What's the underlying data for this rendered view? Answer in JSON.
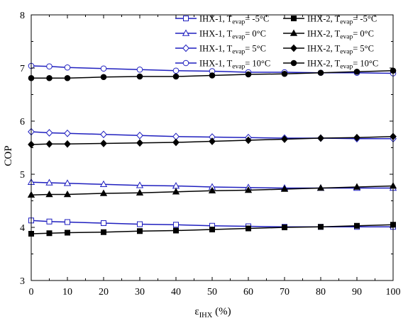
{
  "chart_data": {
    "type": "line",
    "title": "",
    "xlabel": {
      "main": "ε",
      "sub": "IHX",
      "suffix": " (%)"
    },
    "ylabel": "COP",
    "xlim": [
      0,
      100
    ],
    "ylim": [
      3,
      8
    ],
    "x_ticks": [
      0,
      10,
      20,
      30,
      40,
      50,
      60,
      70,
      80,
      90,
      100
    ],
    "y_ticks": [
      3,
      4,
      5,
      6,
      7,
      8
    ],
    "x": [
      0,
      5,
      10,
      20,
      30,
      40,
      50,
      60,
      70,
      80,
      90,
      100
    ],
    "grid": false,
    "legend_position": "top-right",
    "series": [
      {
        "name": "IHX-1, Tevap= -5°C",
        "label": {
          "pre": "IHX-1, T",
          "sub": "evap",
          "post": "= -5°C"
        },
        "marker": "square",
        "fill": "open",
        "color": "#1f1fbf",
        "values": [
          4.13,
          4.11,
          4.1,
          4.08,
          4.06,
          4.05,
          4.03,
          4.02,
          4.01,
          4.01,
          4.01,
          4.01
        ]
      },
      {
        "name": "IHX-2, Tevap= -5°C",
        "label": {
          "pre": "IHX-2, T",
          "sub": "evap",
          "post": "= -5°C"
        },
        "marker": "square",
        "fill": "filled",
        "color": "#000000",
        "values": [
          3.88,
          3.89,
          3.9,
          3.91,
          3.93,
          3.94,
          3.96,
          3.98,
          4.0,
          4.01,
          4.03,
          4.05
        ]
      },
      {
        "name": "IHX-1, Tevap= 0°C",
        "label": {
          "pre": "IHX-1, T",
          "sub": "evap",
          "post": "= 0°C"
        },
        "marker": "triangle",
        "fill": "open",
        "color": "#1f1fbf",
        "values": [
          4.85,
          4.84,
          4.83,
          4.81,
          4.79,
          4.78,
          4.76,
          4.75,
          4.74,
          4.74,
          4.74,
          4.74
        ]
      },
      {
        "name": "IHX-2, Tevap= 0°C",
        "label": {
          "pre": "IHX-2, T",
          "sub": "evap",
          "post": "= 0°C"
        },
        "marker": "triangle",
        "fill": "filled",
        "color": "#000000",
        "values": [
          4.61,
          4.62,
          4.62,
          4.64,
          4.65,
          4.67,
          4.69,
          4.7,
          4.72,
          4.74,
          4.76,
          4.78
        ]
      },
      {
        "name": "IHX-1, Tevap= 5°C",
        "label": {
          "pre": "IHX-1, T",
          "sub": "evap",
          "post": "= 5°C"
        },
        "marker": "diamond",
        "fill": "open",
        "color": "#1f1fbf",
        "values": [
          5.8,
          5.78,
          5.77,
          5.75,
          5.73,
          5.71,
          5.7,
          5.69,
          5.68,
          5.68,
          5.67,
          5.67
        ]
      },
      {
        "name": "IHX-2, Tevap= 5°C",
        "label": {
          "pre": "IHX-2, T",
          "sub": "evap",
          "post": "= 5°C"
        },
        "marker": "diamond",
        "fill": "filled",
        "color": "#000000",
        "values": [
          5.56,
          5.57,
          5.57,
          5.58,
          5.59,
          5.6,
          5.62,
          5.64,
          5.66,
          5.68,
          5.69,
          5.71
        ]
      },
      {
        "name": "IHX-1, Tevap= 10°C",
        "label": {
          "pre": "IHX-1, T",
          "sub": "evap",
          "post": "= 10°C"
        },
        "marker": "circle",
        "fill": "open",
        "color": "#1f1fbf",
        "values": [
          7.04,
          7.03,
          7.01,
          6.99,
          6.97,
          6.95,
          6.94,
          6.92,
          6.92,
          6.91,
          6.91,
          6.9
        ]
      },
      {
        "name": "IHX-2, Tevap= 10°C",
        "label": {
          "pre": "IHX-2, T",
          "sub": "evap",
          "post": "= 10°C"
        },
        "marker": "circle",
        "fill": "filled",
        "color": "#000000",
        "values": [
          6.81,
          6.81,
          6.81,
          6.83,
          6.84,
          6.84,
          6.86,
          6.88,
          6.89,
          6.91,
          6.93,
          6.95
        ]
      }
    ]
  }
}
